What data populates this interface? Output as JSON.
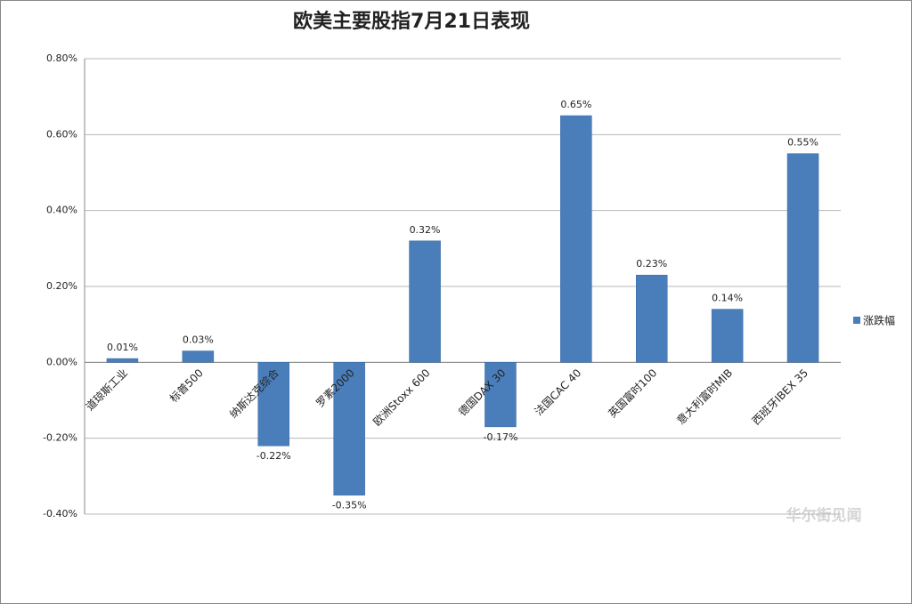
{
  "chart_data": {
    "type": "bar",
    "title": "欧美主要股指7月21日表现",
    "categories": [
      "道琼斯工业",
      "标普500",
      "纳斯达克综合",
      "罗素2000",
      "欧洲Stoxx 600",
      "德国DAX 30",
      "法国CAC 40",
      "英国富时100",
      "意大利富时MIB",
      "西班牙IBEX 35"
    ],
    "series": [
      {
        "name": "涨跌幅",
        "color": "#4a7ebb",
        "values": [
          0.01,
          0.03,
          -0.22,
          -0.35,
          0.32,
          -0.17,
          0.65,
          0.23,
          0.14,
          0.55
        ],
        "value_labels": [
          "0.01%",
          "0.03%",
          "-0.22%",
          "-0.35%",
          "0.32%",
          "-0.17%",
          "0.65%",
          "0.23%",
          "0.14%",
          "0.55%"
        ]
      }
    ],
    "ylim": [
      -0.4,
      0.8
    ],
    "yticks": [
      {
        "value": -0.4,
        "label": "-0.40%"
      },
      {
        "value": -0.2,
        "label": "-0.20%"
      },
      {
        "value": 0,
        "label": "0.00%"
      },
      {
        "value": 0.2,
        "label": "0.20%"
      },
      {
        "value": 0.4,
        "label": "0.40%"
      },
      {
        "value": 0.6,
        "label": "0.60%"
      },
      {
        "value": 0.8,
        "label": "0.80%"
      }
    ],
    "grid": true,
    "legend": "right",
    "watermark": "华尔街见闻"
  }
}
